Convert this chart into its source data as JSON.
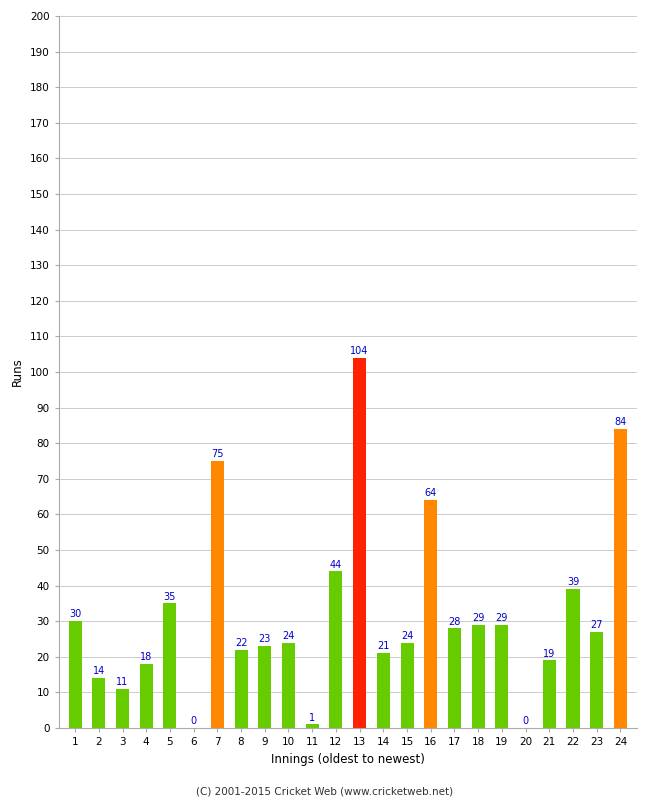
{
  "xlabel": "Innings (oldest to newest)",
  "ylabel": "Runs",
  "categories": [
    1,
    2,
    3,
    4,
    5,
    6,
    7,
    8,
    9,
    10,
    11,
    12,
    13,
    14,
    15,
    16,
    17,
    18,
    19,
    20,
    21,
    22,
    23,
    24
  ],
  "values": [
    30,
    14,
    11,
    18,
    35,
    0,
    75,
    22,
    23,
    24,
    1,
    44,
    104,
    21,
    24,
    64,
    28,
    29,
    29,
    0,
    19,
    39,
    27,
    84
  ],
  "colors": [
    "#66cc00",
    "#66cc00",
    "#66cc00",
    "#66cc00",
    "#66cc00",
    "#66cc00",
    "#ff8800",
    "#66cc00",
    "#66cc00",
    "#66cc00",
    "#66cc00",
    "#66cc00",
    "#ff2200",
    "#66cc00",
    "#66cc00",
    "#ff8800",
    "#66cc00",
    "#66cc00",
    "#66cc00",
    "#66cc00",
    "#66cc00",
    "#66cc00",
    "#66cc00",
    "#ff8800"
  ],
  "ylim": [
    0,
    200
  ],
  "yticks": [
    0,
    10,
    20,
    30,
    40,
    50,
    60,
    70,
    80,
    90,
    100,
    110,
    120,
    130,
    140,
    150,
    160,
    170,
    180,
    190,
    200
  ],
  "label_color": "#0000cc",
  "background_color": "#ffffff",
  "grid_color": "#cccccc",
  "footer": "(C) 2001-2015 Cricket Web (www.cricketweb.net)",
  "bar_width": 0.55
}
